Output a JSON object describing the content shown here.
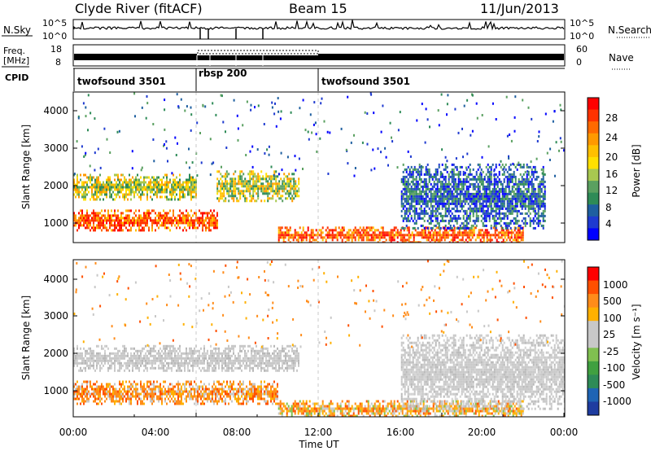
{
  "header": {
    "station": "Clyde River (fitACF)",
    "beam": "Beam 15",
    "date": "11/Jun/2013"
  },
  "chart_data": [
    {
      "type": "line",
      "panel": "noise",
      "left_label": "N.Sky",
      "right_label": "N.Search",
      "left_ticks": [
        "10^5",
        "10^0"
      ],
      "right_ticks": [
        "10^5",
        "10^0"
      ]
    },
    {
      "type": "line",
      "panel": "frequency",
      "left_label_lines": [
        "Freq.",
        "[MHz]"
      ],
      "right_label": "Nave",
      "left_ticks": [
        "18",
        "8"
      ],
      "right_ticks": [
        "60",
        "0"
      ],
      "cpid_label": "CPID",
      "cpid_segments": [
        {
          "label": "twofsound 3501",
          "start_hour": 0,
          "end_hour": 6
        },
        {
          "label": "rbsp 200",
          "start_hour": 6,
          "end_hour": 12
        },
        {
          "label": "twofsound 3501",
          "start_hour": 12,
          "end_hour": 24
        }
      ]
    },
    {
      "type": "heatmap",
      "panel": "power",
      "ylabel": "Slant Range [km]",
      "y_ticks": [
        "4000",
        "3000",
        "2000",
        "1000"
      ],
      "ylim": [
        180,
        4600
      ],
      "colorbar_label": "Power [dB]",
      "colorbar_ticks": [
        "28",
        "24",
        "20",
        "16",
        "12",
        "8",
        "4"
      ],
      "colorbar_colors": [
        "#ff0000",
        "#ff3300",
        "#ff6a00",
        "#ff9900",
        "#ffc000",
        "#ffe000",
        "#a8c850",
        "#5aa060",
        "#2e8b57",
        "#1e5fa0",
        "#1e3ad0",
        "#0000ff"
      ],
      "bands": [
        {
          "x_start": 0,
          "x_end": 6,
          "range_km": [
            1450,
            2200
          ],
          "level": "medium"
        },
        {
          "x_start": 0,
          "x_end": 7,
          "range_km": [
            550,
            1150
          ],
          "level": "high"
        },
        {
          "x_start": 7,
          "x_end": 11,
          "range_km": [
            1400,
            2300
          ],
          "level": "medium"
        },
        {
          "x_start": 10,
          "x_end": 22,
          "range_km": [
            200,
            650
          ],
          "level": "high"
        },
        {
          "x_start": 16,
          "x_end": 23,
          "range_km": [
            600,
            2500
          ],
          "level": "low"
        }
      ]
    },
    {
      "type": "heatmap",
      "panel": "velocity",
      "ylabel": "Slant Range [km]",
      "y_ticks": [
        "4000",
        "3000",
        "2000",
        "1000"
      ],
      "ylim": [
        180,
        4600
      ],
      "colorbar_label": "Velocity [m s⁻¹]",
      "colorbar_ticks": [
        "1000",
        "500",
        "100",
        "25",
        "-25",
        "-100",
        "-500",
        "-1000"
      ],
      "colorbar_colors": [
        "#ff0000",
        "#ff5000",
        "#ff8c1a",
        "#ffb000",
        "#c8c8c8",
        "#c8c8c8",
        "#80c050",
        "#40a040",
        "#2e8b57",
        "#1e64b4",
        "#1e3ca0"
      ],
      "bands": [
        {
          "x_start": 0,
          "x_end": 11,
          "range_km": [
            1450,
            2200
          ],
          "level": "ground"
        },
        {
          "x_start": 0,
          "x_end": 10,
          "range_km": [
            550,
            1200
          ],
          "level": "negative"
        },
        {
          "x_start": 10,
          "x_end": 22,
          "range_km": [
            200,
            650
          ],
          "level": "mixed"
        },
        {
          "x_start": 16,
          "x_end": 24,
          "range_km": [
            400,
            2500
          ],
          "level": "ground"
        }
      ]
    }
  ],
  "x_axis": {
    "tick_labels": [
      "00:00",
      "04:00",
      "08:00",
      "12:00",
      "16:00",
      "20:00",
      "00:00"
    ],
    "label": "Time UT"
  }
}
